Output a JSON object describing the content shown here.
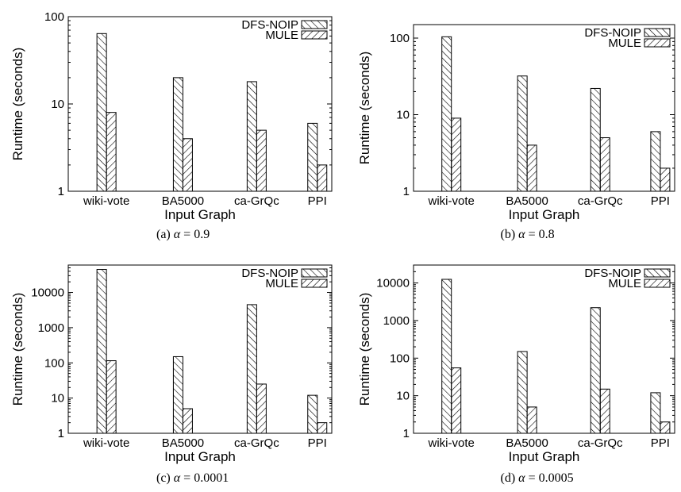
{
  "chart_data": [
    {
      "type": "bar",
      "caption_prefix": "(a)",
      "caption_alpha": "0.9",
      "xlabel": "Input Graph",
      "ylabel": "Runtime (seconds)",
      "log_y": true,
      "ylim": [
        1,
        100
      ],
      "yticks": [
        1,
        10,
        100
      ],
      "ytick_labels": [
        "1",
        "10",
        "100"
      ],
      "categories": [
        "wiki-vote",
        "BA5000",
        "ca-GrQc",
        "PPI"
      ],
      "series": [
        {
          "name": "DFS-NOIP",
          "values": [
            64,
            20,
            18,
            6
          ]
        },
        {
          "name": "MULE",
          "values": [
            8,
            4,
            5,
            2
          ]
        }
      ],
      "legend_position": "top-right"
    },
    {
      "type": "bar",
      "caption_prefix": "(b)",
      "caption_alpha": "0.8",
      "xlabel": "Input Graph",
      "ylabel": "Runtime (seconds)",
      "log_y": true,
      "ylim": [
        1,
        150
      ],
      "yticks": [
        1,
        10,
        100
      ],
      "ytick_labels": [
        "1",
        "10",
        "100"
      ],
      "categories": [
        "wiki-vote",
        "BA5000",
        "ca-GrQc",
        "PPI"
      ],
      "series": [
        {
          "name": "DFS-NOIP",
          "values": [
            104,
            32,
            22,
            6
          ]
        },
        {
          "name": "MULE",
          "values": [
            9,
            4,
            5,
            2
          ]
        }
      ],
      "legend_position": "top-right"
    },
    {
      "type": "bar",
      "caption_prefix": "(c)",
      "caption_alpha": "0.0001",
      "xlabel": "Input Graph",
      "ylabel": "Runtime (seconds)",
      "log_y": true,
      "ylim": [
        1,
        60000
      ],
      "yticks": [
        1,
        10,
        100,
        1000,
        10000
      ],
      "ytick_labels": [
        "1",
        "10",
        "100",
        "1000",
        "10000"
      ],
      "categories": [
        "wiki-vote",
        "BA5000",
        "ca-GrQc",
        "PPI"
      ],
      "series": [
        {
          "name": "DFS-NOIP",
          "values": [
            45000,
            150,
            4500,
            12
          ]
        },
        {
          "name": "MULE",
          "values": [
            115,
            5,
            25,
            2
          ]
        }
      ],
      "legend_position": "top-right"
    },
    {
      "type": "bar",
      "caption_prefix": "(d)",
      "caption_alpha": "0.0005",
      "xlabel": "Input Graph",
      "ylabel": "Runtime (seconds)",
      "log_y": true,
      "ylim": [
        1,
        30000
      ],
      "yticks": [
        1,
        10,
        100,
        1000,
        10000
      ],
      "ytick_labels": [
        "1",
        "10",
        "100",
        "1000",
        "10000"
      ],
      "categories": [
        "wiki-vote",
        "BA5000",
        "ca-GrQc",
        "PPI"
      ],
      "series": [
        {
          "name": "DFS-NOIP",
          "values": [
            12500,
            150,
            2200,
            12
          ]
        },
        {
          "name": "MULE",
          "values": [
            55,
            5,
            15,
            2
          ]
        }
      ],
      "legend_position": "top-right"
    }
  ]
}
